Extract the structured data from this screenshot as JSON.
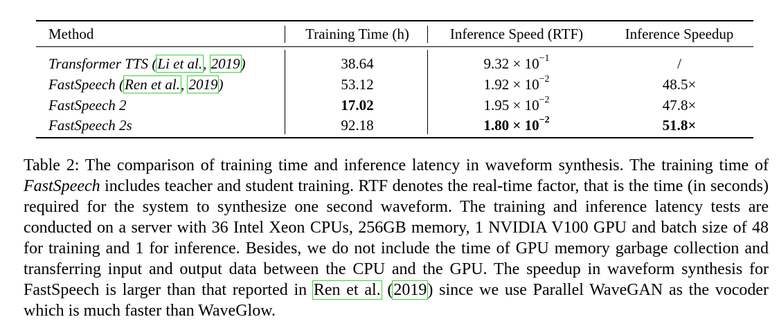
{
  "table": {
    "headers": [
      "Method",
      "Training Time (h)",
      "Inference Speed (RTF)",
      "Inference Speedup"
    ],
    "rows": [
      {
        "method": "Transformer TTS",
        "cite_author": "Li et al.",
        "cite_year": "2019",
        "training": "38.64",
        "rtf_base": "9.32 × 10",
        "rtf_exp": "−1",
        "speedup": "/"
      },
      {
        "method": "FastSpeech",
        "cite_author": "Ren et al.",
        "cite_year": "2019",
        "training": "53.12",
        "rtf_base": "1.92 × 10",
        "rtf_exp": "−2",
        "speedup": "48.5×"
      },
      {
        "method": "FastSpeech 2",
        "training": "17.02",
        "rtf_base": "1.95 × 10",
        "rtf_exp": "−2",
        "speedup": "47.8×"
      },
      {
        "method": "FastSpeech 2s",
        "training": "92.18",
        "rtf_base": "1.80 × 10",
        "rtf_exp": "−2",
        "speedup": "51.8×"
      }
    ]
  },
  "caption": {
    "p1": "Table 2: The comparison of training time and inference latency in waveform synthesis. The training time of ",
    "em": "FastSpeech",
    "p2": " includes teacher and student training. RTF denotes the real-time factor, that is the time (in seconds) required for the system to synthesize one second waveform. The training and inference latency tests are conducted on a server with 36 Intel Xeon CPUs, 256GB memory, 1 NVIDIA V100 GPU and batch size of 48 for training and 1 for inference. Besides, we do not include the time of GPU memory garbage collection and transferring input and output data between the CPU and the GPU. The speedup in waveform synthesis for FastSpeech is larger than that reported in ",
    "cite_author": "Ren et al.",
    "cite_year": "2019",
    "p3": " since we use Parallel WaveGAN as the vocoder which is much faster than WaveGlow."
  }
}
